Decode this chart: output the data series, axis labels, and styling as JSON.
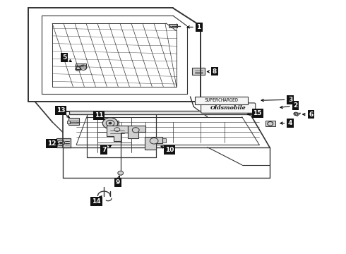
{
  "background_color": "#ffffff",
  "line_color": "#333333",
  "fig_width": 4.9,
  "fig_height": 3.6,
  "dpi": 100,
  "labels": [
    {
      "num": "1",
      "lbx": 0.575,
      "lby": 0.895,
      "ptx": 0.53,
      "pty": 0.895
    },
    {
      "num": "5",
      "lbx": 0.185,
      "lby": 0.775,
      "ptx": 0.215,
      "pty": 0.75
    },
    {
      "num": "8",
      "lbx": 0.62,
      "lby": 0.72,
      "ptx": 0.588,
      "pty": 0.718
    },
    {
      "num": "4",
      "lbx": 0.84,
      "lby": 0.515,
      "ptx": 0.8,
      "pty": 0.515
    },
    {
      "num": "6",
      "lbx": 0.9,
      "lby": 0.55,
      "ptx": 0.865,
      "pty": 0.55
    },
    {
      "num": "15",
      "lbx": 0.745,
      "lby": 0.555,
      "ptx": 0.705,
      "pty": 0.548
    },
    {
      "num": "2",
      "lbx": 0.855,
      "lby": 0.585,
      "ptx": 0.8,
      "pty": 0.575
    },
    {
      "num": "3",
      "lbx": 0.84,
      "lby": 0.608,
      "ptx": 0.745,
      "pty": 0.605
    },
    {
      "num": "11",
      "lbx": 0.285,
      "lby": 0.545,
      "ptx": 0.31,
      "pty": 0.52
    },
    {
      "num": "13",
      "lbx": 0.175,
      "lby": 0.565,
      "ptx": 0.208,
      "pty": 0.528
    },
    {
      "num": "7",
      "lbx": 0.3,
      "lby": 0.41,
      "ptx": 0.33,
      "pty": 0.435
    },
    {
      "num": "9",
      "lbx": 0.34,
      "lby": 0.28,
      "ptx": 0.345,
      "pty": 0.31
    },
    {
      "num": "10",
      "lbx": 0.49,
      "lby": 0.41,
      "ptx": 0.455,
      "pty": 0.43
    },
    {
      "num": "12",
      "lbx": 0.148,
      "lby": 0.435,
      "ptx": 0.178,
      "pty": 0.435
    },
    {
      "num": "14",
      "lbx": 0.278,
      "lby": 0.205,
      "ptx": 0.295,
      "pty": 0.23
    }
  ]
}
